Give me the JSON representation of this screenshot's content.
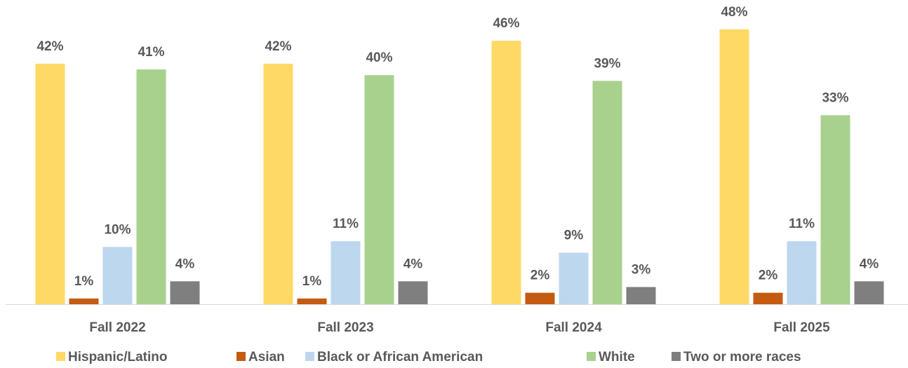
{
  "chart_data": {
    "type": "bar",
    "categories": [
      "Fall 2022",
      "Fall 2023",
      "Fall 2024",
      "Fall 2025"
    ],
    "series": [
      {
        "name": "Hispanic/Latino",
        "color": "#FFD966",
        "values": [
          42,
          42,
          46,
          48
        ],
        "value_labels": [
          "42%",
          "42%",
          "46%",
          "48%"
        ]
      },
      {
        "name": "Asian",
        "color": "#C55A11",
        "values": [
          1,
          1,
          2,
          2
        ],
        "value_labels": [
          "1%",
          "1%",
          "2%",
          "2%"
        ]
      },
      {
        "name": "Black or African American",
        "color": "#BDD7EE",
        "values": [
          10,
          11,
          9,
          11
        ],
        "value_labels": [
          "10%",
          "11%",
          "9%",
          "11%"
        ]
      },
      {
        "name": "White",
        "color": "#A9D18E",
        "values": [
          41,
          40,
          39,
          33
        ],
        "value_labels": [
          "41%",
          "40%",
          "39%",
          "33%"
        ]
      },
      {
        "name": "Two or more races",
        "color": "#7F7F7F",
        "values": [
          4,
          4,
          3,
          4
        ],
        "value_labels": [
          "4%",
          "4%",
          "3%",
          "4%"
        ]
      }
    ],
    "ylim": [
      0,
      53
    ],
    "legend": "bottom"
  }
}
